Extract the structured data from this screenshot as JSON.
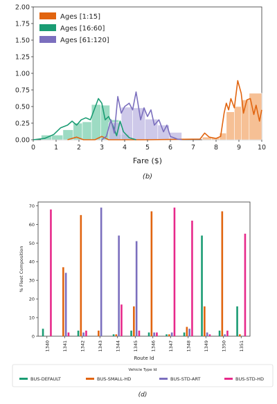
{
  "chart_data": [
    {
      "type": "histogram-kde",
      "panel_caption": "(b)",
      "xlabel": "Fare ($)",
      "ylabel": "",
      "xlim": [
        0,
        10
      ],
      "ylim": [
        0,
        2.0
      ],
      "x_ticks": [
        "0",
        "1",
        "2",
        "3",
        "4",
        "5",
        "6",
        "7",
        "8",
        "9",
        "10"
      ],
      "y_ticks": [
        "0.00",
        "0.25",
        "0.50",
        "0.75",
        "1.00",
        "1.25",
        "1.50",
        "1.75",
        "2.00"
      ],
      "legend_position": "top-left",
      "series": [
        {
          "name": "Ages [1:15]",
          "color": "#e1640f",
          "fill": "#f4b07a",
          "bins": [
            [
              7.4,
              7.8,
              0.04
            ],
            [
              7.8,
              8.15,
              0.03
            ],
            [
              8.15,
              8.45,
              0.1
            ],
            [
              8.45,
              8.8,
              0.42
            ],
            [
              8.8,
              9.1,
              0.5
            ],
            [
              9.1,
              9.45,
              0.6
            ],
            [
              9.45,
              10.0,
              0.7
            ]
          ],
          "curve": [
            [
              1.5,
              0
            ],
            [
              1.9,
              0.04
            ],
            [
              2.2,
              0
            ],
            [
              2.7,
              0
            ],
            [
              3.0,
              0.05
            ],
            [
              3.3,
              0
            ],
            [
              5.0,
              0
            ],
            [
              7.3,
              0.01
            ],
            [
              7.5,
              0.1
            ],
            [
              7.7,
              0.04
            ],
            [
              8.0,
              0.02
            ],
            [
              8.2,
              0.05
            ],
            [
              8.35,
              0.4
            ],
            [
              8.45,
              0.55
            ],
            [
              8.55,
              0.45
            ],
            [
              8.65,
              0.62
            ],
            [
              8.8,
              0.48
            ],
            [
              8.95,
              0.89
            ],
            [
              9.1,
              0.7
            ],
            [
              9.2,
              0.4
            ],
            [
              9.35,
              0.6
            ],
            [
              9.5,
              0.62
            ],
            [
              9.65,
              0.38
            ],
            [
              9.75,
              0.52
            ],
            [
              9.9,
              0.28
            ],
            [
              10.0,
              0.45
            ]
          ]
        },
        {
          "name": "Ages [16:60]",
          "color": "#1a9c73",
          "fill": "#85d2b4",
          "bins": [
            [
              0.35,
              0.8,
              0.07
            ],
            [
              0.8,
              1.3,
              0.07
            ],
            [
              1.3,
              1.75,
              0.15
            ],
            [
              1.75,
              2.15,
              0.25
            ],
            [
              2.15,
              2.55,
              0.27
            ],
            [
              2.55,
              2.95,
              0.53
            ],
            [
              2.95,
              3.35,
              0.52
            ],
            [
              3.35,
              3.75,
              0.3
            ],
            [
              3.75,
              4.2,
              0.08
            ]
          ],
          "curve": [
            [
              0.0,
              0
            ],
            [
              0.5,
              0.02
            ],
            [
              0.9,
              0.08
            ],
            [
              1.2,
              0.18
            ],
            [
              1.5,
              0.22
            ],
            [
              1.7,
              0.28
            ],
            [
              1.9,
              0.22
            ],
            [
              2.1,
              0.3
            ],
            [
              2.3,
              0.33
            ],
            [
              2.5,
              0.3
            ],
            [
              2.7,
              0.48
            ],
            [
              2.85,
              0.62
            ],
            [
              3.0,
              0.55
            ],
            [
              3.15,
              0.3
            ],
            [
              3.3,
              0.35
            ],
            [
              3.5,
              0.2
            ],
            [
              3.65,
              0.06
            ],
            [
              3.8,
              0.28
            ],
            [
              3.95,
              0.12
            ],
            [
              4.2,
              0.03
            ],
            [
              4.5,
              0
            ]
          ]
        },
        {
          "name": "Ages [61:120]",
          "color": "#7b6fbe",
          "fill": "#c2bce3",
          "bins": [
            [
              3.3,
              3.85,
              0.26
            ],
            [
              3.85,
              4.35,
              0.49
            ],
            [
              4.35,
              4.9,
              0.48
            ],
            [
              4.9,
              5.45,
              0.31
            ],
            [
              5.45,
              5.95,
              0.22
            ],
            [
              5.95,
              6.5,
              0.11
            ]
          ],
          "curve": [
            [
              3.0,
              0
            ],
            [
              3.2,
              0.05
            ],
            [
              3.4,
              0.3
            ],
            [
              3.55,
              0.1
            ],
            [
              3.7,
              0.65
            ],
            [
              3.85,
              0.4
            ],
            [
              4.0,
              0.5
            ],
            [
              4.2,
              0.55
            ],
            [
              4.35,
              0.45
            ],
            [
              4.5,
              0.72
            ],
            [
              4.7,
              0.3
            ],
            [
              4.85,
              0.48
            ],
            [
              5.0,
              0.35
            ],
            [
              5.15,
              0.45
            ],
            [
              5.3,
              0.22
            ],
            [
              5.5,
              0.3
            ],
            [
              5.7,
              0.12
            ],
            [
              5.85,
              0.22
            ],
            [
              6.0,
              0.05
            ],
            [
              6.3,
              0.01
            ],
            [
              6.5,
              0
            ]
          ]
        }
      ]
    },
    {
      "type": "bar",
      "panel_caption": "(d)",
      "xlabel": "Route Id",
      "ylabel": "% Fleet Composition",
      "ylim": [
        0,
        72
      ],
      "y_ticks": [
        "0",
        "10",
        "20",
        "30",
        "40",
        "50",
        "60",
        "70"
      ],
      "categories": [
        "1340",
        "1341",
        "1342",
        "1343",
        "1344",
        "1345",
        "1346",
        "1347",
        "1348",
        "1349",
        "1350",
        "1351"
      ],
      "legend_title": "Vehicle Type Id",
      "legend_position": "bottom",
      "series": [
        {
          "name": "BUS-DEFAULT",
          "color": "#1a9c73",
          "values": [
            4,
            0,
            3,
            0,
            1,
            3,
            2,
            1,
            2,
            54,
            3,
            16
          ]
        },
        {
          "name": "BUS-SMALL-HD",
          "color": "#e1640f",
          "values": [
            0,
            37,
            65,
            3,
            1,
            16,
            67,
            1,
            5,
            16,
            67,
            1
          ]
        },
        {
          "name": "BUS-STD-ART",
          "color": "#7b6fbe",
          "values": [
            0,
            34,
            2,
            69,
            54,
            51,
            2,
            2,
            4,
            2,
            1,
            0
          ]
        },
        {
          "name": "BUS-STD-HD",
          "color": "#e7298a",
          "values": [
            68,
            2,
            3,
            0,
            17,
            3,
            2,
            69,
            62,
            1,
            3,
            55
          ]
        }
      ]
    }
  ]
}
